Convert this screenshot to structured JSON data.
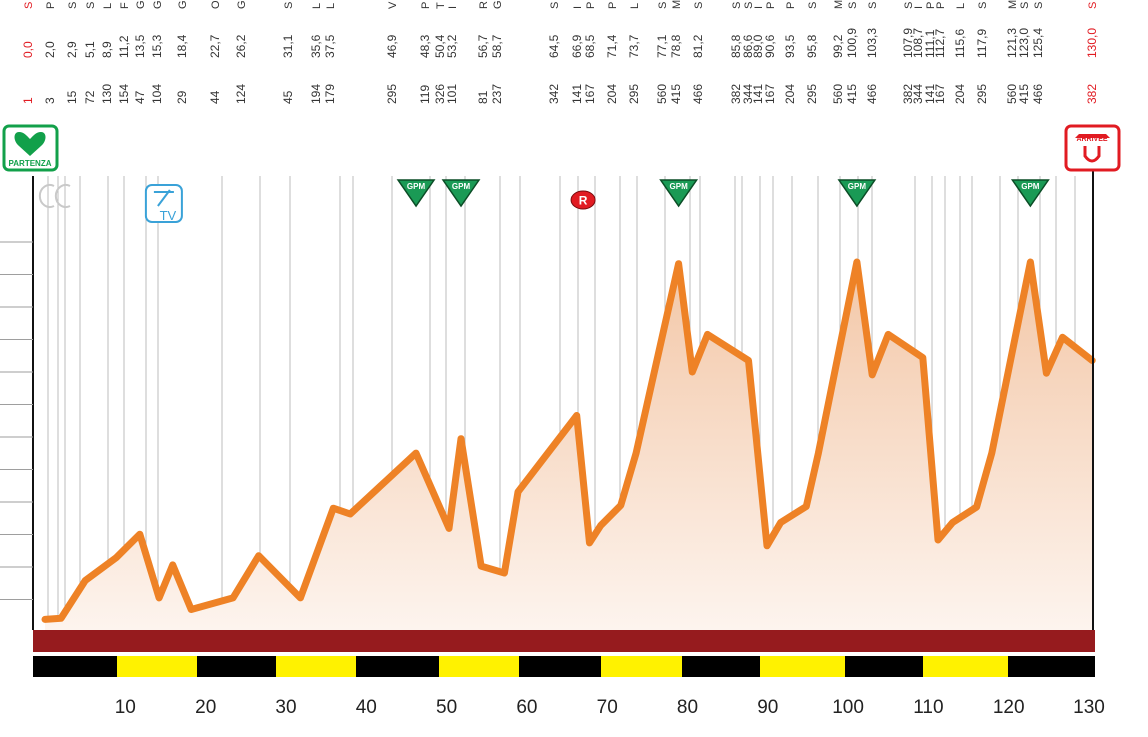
{
  "chart_data": {
    "type": "area",
    "title": "",
    "xlabel": "",
    "ylabel": "",
    "xlim": [
      -1.5,
      130.5
    ],
    "x_ticks": [
      10,
      20,
      30,
      40,
      50,
      60,
      70,
      80,
      90,
      100,
      110,
      120,
      130
    ],
    "x": [
      0,
      2,
      5,
      8.9,
      11.8,
      14.2,
      15.9,
      18.2,
      23.4,
      26.6,
      31.8,
      35.9,
      38,
      46.2,
      50.3,
      51.8,
      54.3,
      57.2,
      58.9,
      66.2,
      67.8,
      69.2,
      71.7,
      73.6,
      78.9,
      80.6,
      82.5,
      87.6,
      89.9,
      91.6,
      94.8,
      96.3,
      101.1,
      103,
      105,
      109.3,
      111.2,
      113,
      116,
      117.9,
      122.7,
      124.7,
      126.7,
      130.4
    ],
    "y": [
      8,
      10,
      75,
      115,
      155,
      45,
      102,
      25,
      45,
      118,
      45,
      200,
      190,
      295,
      165,
      320,
      100,
      88,
      228,
      360,
      140,
      170,
      205,
      295,
      622,
      435,
      500,
      455,
      135,
      175,
      203,
      295,
      625,
      430,
      500,
      460,
      145,
      175,
      202,
      295,
      625,
      433,
      495,
      455
    ],
    "series_color": "#ee8226",
    "fill_top": "#f3c7a7",
    "fill_bottom": "#fdf4ee",
    "start": {
      "label": "PARTENZA",
      "color": "#12a04a"
    },
    "finish": {
      "label": "ARRIVEE",
      "color": "#e11b22"
    },
    "markers": [
      {
        "label": "GPM",
        "x": 46.2,
        "type": "gpm"
      },
      {
        "label": "GPM",
        "x": 51.8,
        "type": "gpm"
      },
      {
        "label": "GPM",
        "x": 78.9,
        "type": "gpm"
      },
      {
        "label": "GPM",
        "x": 101.1,
        "type": "gpm"
      },
      {
        "label": "GPM",
        "x": 122.7,
        "type": "gpm"
      },
      {
        "label": "R",
        "x": 67,
        "type": "ravito"
      },
      {
        "label": "TV",
        "x": 14.8,
        "type": "tv"
      }
    ],
    "header": {
      "km": [
        "0,0",
        "2,0",
        "2,9",
        "5,1",
        "8,9",
        "11,2",
        "13,5",
        "15,3",
        "18,4",
        "22,7",
        "26,2",
        "31,1",
        "35,6",
        "37,5",
        "46,9",
        "48,3",
        "50,4",
        "53,2",
        "56,7",
        "58,7",
        "64,5",
        "66,9",
        "68,5",
        "71,4",
        "73,7",
        "77,1",
        "78,8",
        "81,2",
        "85,8",
        "86,6",
        "89,0",
        "90,6",
        "93,5",
        "95,8",
        "99,2",
        "100,9",
        "103,3",
        "107,9",
        "108,7",
        "111,1",
        "112,7",
        "115,6",
        "117,9",
        "121,3",
        "123,0",
        "125,4",
        "130,0"
      ],
      "alt": [
        "1",
        "3",
        "15",
        "72",
        "130",
        "154",
        "47",
        "104",
        "29",
        "44",
        "124",
        "45",
        "194",
        "179",
        "295",
        "119",
        "326",
        "101",
        "81",
        "237",
        "342",
        "141",
        "167",
        "204",
        "295",
        "560",
        "415",
        "466",
        "382",
        "344",
        "141",
        "167",
        "204",
        "295",
        "560",
        "415",
        "466",
        "382",
        "344",
        "141",
        "167",
        "204",
        "295",
        "560",
        "415",
        "466",
        "382"
      ]
    },
    "distance_band_segments": 13
  }
}
